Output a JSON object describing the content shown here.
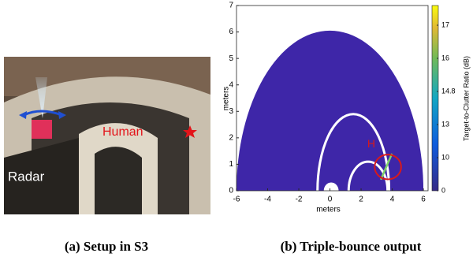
{
  "photo": {
    "labels": {
      "radar": "Radar",
      "human": "Human"
    },
    "caption": "(a) Setup in S3"
  },
  "chart_data": {
    "type": "region",
    "caption": "(b) Triple-bounce output",
    "xlabel": "meters",
    "ylabel": "meters",
    "xlim": [
      -6,
      6.3
    ],
    "ylim": [
      0,
      7
    ],
    "xticks": [
      -6,
      -4,
      -2,
      0,
      2,
      4,
      6
    ],
    "yticks": [
      0,
      1,
      2,
      3,
      4,
      5,
      6,
      7
    ],
    "region": {
      "color": "#3e26a8",
      "x": [
        -6,
        6
      ],
      "y_max": 6.05
    },
    "arcs": [
      {
        "cx": 1.5,
        "rx": 2.3,
        "ry": 2.9
      },
      {
        "cx": 2.45,
        "rx": 1.25,
        "ry": 1.1
      },
      {
        "cx": 0.08,
        "rx": 0.4,
        "ry": 0.27
      }
    ],
    "target": {
      "x": [
        3.27,
        3.98
      ],
      "y": [
        0.42,
        1.4
      ]
    },
    "highlight": {
      "cx": 3.72,
      "cy": 0.9,
      "r": 0.85,
      "color": "#d7191c"
    },
    "annotation": {
      "text": "H",
      "x": 2.65,
      "y": 1.75
    },
    "colorbar": {
      "label": "Target-to-Clutter Ratio (dB)",
      "ticks": [
        0,
        10,
        13,
        14.8,
        16,
        17
      ]
    }
  }
}
